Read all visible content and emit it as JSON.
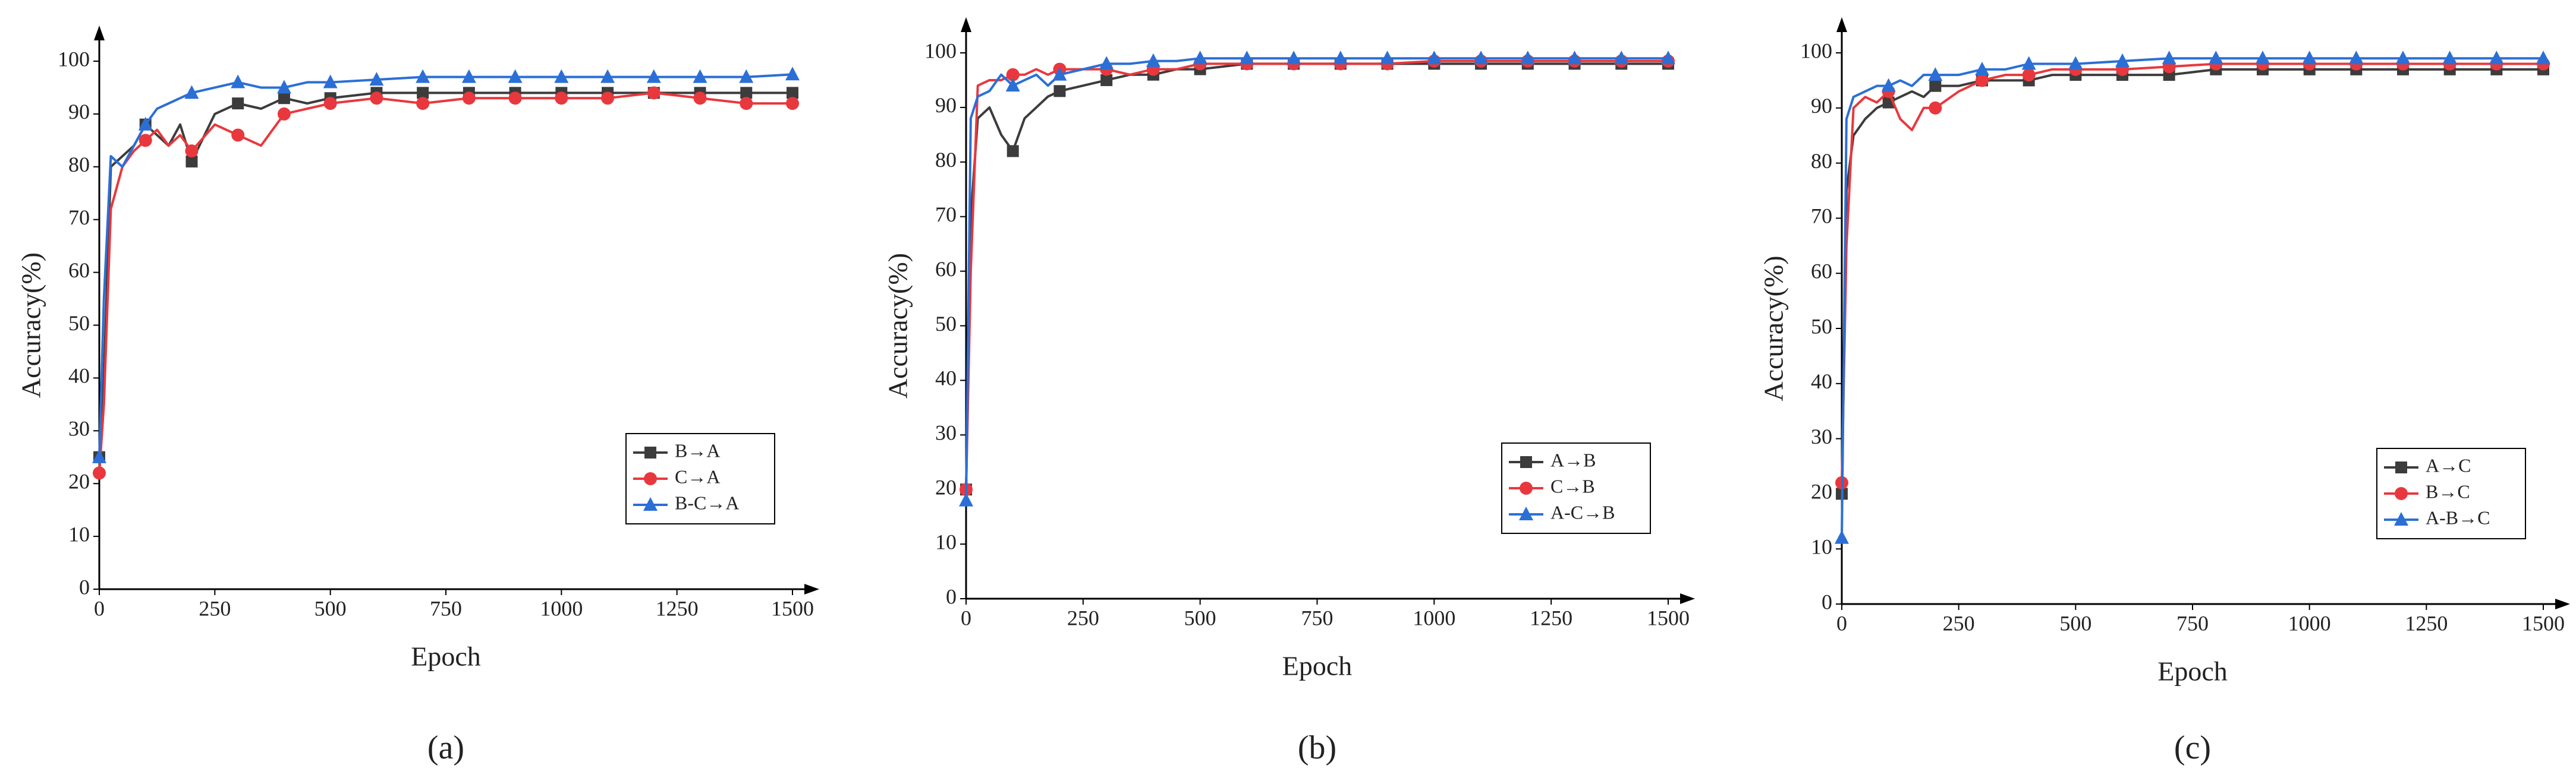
{
  "chart_data": [
    {
      "type": "line",
      "caption": "(a)",
      "x_label": "Epoch",
      "y_label": "Accuracy(%)",
      "x": [
        0,
        10,
        25,
        50,
        75,
        100,
        125,
        150,
        175,
        200,
        250,
        300,
        350,
        400,
        450,
        500,
        600,
        700,
        800,
        900,
        1000,
        1100,
        1200,
        1300,
        1400,
        1500
      ],
      "series": [
        {
          "name": "B→A",
          "color": "#3c3c3c",
          "marker": "square",
          "values": [
            25,
            40,
            80,
            82,
            84,
            88,
            86,
            84,
            88,
            81,
            90,
            92,
            91,
            93,
            92,
            93,
            94,
            94,
            94,
            94,
            94,
            94,
            94,
            94,
            94,
            94
          ]
        },
        {
          "name": "C→A",
          "color": "#e8383d",
          "marker": "circle",
          "values": [
            22,
            35,
            72,
            80,
            83,
            85,
            87,
            84,
            86,
            83,
            88,
            86,
            84,
            90,
            91,
            92,
            93,
            92,
            93,
            93,
            93,
            93,
            94,
            93,
            92,
            92
          ]
        },
        {
          "name": "B-C→A",
          "color": "#2b6fd6",
          "marker": "triangle",
          "values": [
            25,
            55,
            82,
            80,
            84,
            88,
            91,
            92,
            93,
            94,
            95,
            96,
            95,
            95,
            96,
            96,
            96.5,
            97,
            97,
            97,
            97,
            97,
            97,
            97,
            97,
            97.5
          ]
        }
      ],
      "xlim": [
        0,
        1500
      ],
      "ylim": [
        0,
        100
      ],
      "xticks": [
        0,
        250,
        500,
        750,
        1000,
        1250,
        1500
      ],
      "yticks": [
        0,
        10,
        20,
        30,
        40,
        50,
        60,
        70,
        80,
        90,
        100
      ],
      "legend": "lower right",
      "grid": false
    },
    {
      "type": "line",
      "caption": "(b)",
      "x_label": "Epoch",
      "y_label": "Accuracy(%)",
      "x": [
        0,
        10,
        25,
        50,
        75,
        100,
        125,
        150,
        175,
        200,
        250,
        300,
        350,
        400,
        450,
        500,
        600,
        700,
        800,
        900,
        1000,
        1100,
        1200,
        1300,
        1400,
        1500
      ],
      "series": [
        {
          "name": "A→B",
          "color": "#3c3c3c",
          "marker": "square",
          "values": [
            20,
            70,
            88,
            90,
            85,
            82,
            88,
            90,
            92,
            93,
            94,
            95,
            96,
            96,
            97,
            97,
            98,
            98,
            98,
            98,
            98,
            98,
            98,
            98,
            98,
            98
          ]
        },
        {
          "name": "C→B",
          "color": "#e8383d",
          "marker": "circle",
          "values": [
            20,
            60,
            94,
            95,
            95,
            96,
            96,
            97,
            96,
            97,
            97,
            97,
            96,
            97,
            97,
            98,
            98,
            98,
            98,
            98,
            98.5,
            98.5,
            98.5,
            98.5,
            98.5,
            98.5
          ]
        },
        {
          "name": "A-C→B",
          "color": "#2b6fd6",
          "marker": "triangle",
          "values": [
            18,
            88,
            92,
            93,
            96,
            94,
            95,
            96,
            94,
            96,
            97,
            98,
            98,
            98.5,
            98.5,
            99,
            99,
            99,
            99,
            99,
            99,
            99,
            99,
            99,
            99,
            99
          ]
        }
      ],
      "xlim": [
        0,
        1500
      ],
      "ylim": [
        0,
        100
      ],
      "xticks": [
        0,
        250,
        500,
        750,
        1000,
        1250,
        1500
      ],
      "yticks": [
        0,
        10,
        20,
        30,
        40,
        50,
        60,
        70,
        80,
        90,
        100
      ],
      "legend": "lower right",
      "grid": false
    },
    {
      "type": "line",
      "caption": "(c)",
      "x_label": "Epoch",
      "y_label": "Accuracy(%)",
      "x": [
        0,
        10,
        25,
        50,
        75,
        100,
        125,
        150,
        175,
        200,
        250,
        300,
        350,
        400,
        450,
        500,
        600,
        700,
        800,
        900,
        1000,
        1100,
        1200,
        1300,
        1400,
        1500
      ],
      "series": [
        {
          "name": "A→C",
          "color": "#3c3c3c",
          "marker": "square",
          "values": [
            20,
            75,
            85,
            88,
            90,
            91,
            92,
            93,
            92,
            94,
            94,
            95,
            95,
            95,
            96,
            96,
            96,
            96,
            97,
            97,
            97,
            97,
            97,
            97,
            97,
            97
          ]
        },
        {
          "name": "B→C",
          "color": "#e8383d",
          "marker": "circle",
          "values": [
            22,
            65,
            90,
            92,
            91,
            93,
            88,
            86,
            90,
            90,
            93,
            95,
            96,
            96,
            97,
            97,
            97,
            97.5,
            98,
            98,
            98,
            98,
            98,
            98,
            98,
            98
          ]
        },
        {
          "name": "A-B→C",
          "color": "#2b6fd6",
          "marker": "triangle",
          "values": [
            12,
            88,
            92,
            93,
            94,
            94,
            95,
            94,
            96,
            96,
            96,
            97,
            97,
            98,
            98,
            98,
            98.5,
            99,
            99,
            99,
            99,
            99,
            99,
            99,
            99,
            99
          ]
        }
      ],
      "xlim": [
        0,
        1500
      ],
      "ylim": [
        0,
        100
      ],
      "xticks": [
        0,
        250,
        500,
        750,
        1000,
        1250,
        1500
      ],
      "yticks": [
        0,
        10,
        20,
        30,
        40,
        50,
        60,
        70,
        80,
        90,
        100
      ],
      "legend": "lower right",
      "grid": false
    }
  ]
}
